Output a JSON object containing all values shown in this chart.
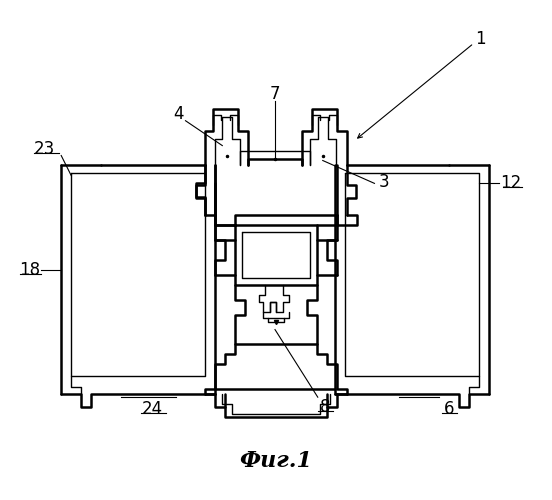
{
  "title": "Фиг.1",
  "bg_color": "#ffffff",
  "line_color": "#000000",
  "lw": 1.8,
  "tlw": 1.0
}
